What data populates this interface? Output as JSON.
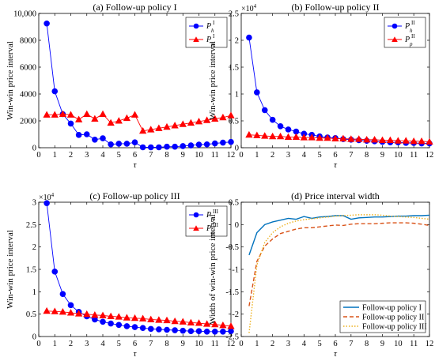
{
  "chart_data": [
    {
      "type": "line",
      "title": "(a) Follow-up policy I",
      "xlabel": "τ",
      "ylabel": "Win-win price interval",
      "xlim": [
        0,
        12
      ],
      "ylim": [
        0,
        10000
      ],
      "x_ticks": [
        "0",
        "1",
        "2",
        "3",
        "4",
        "5",
        "6",
        "7",
        "8",
        "9",
        "10",
        "11",
        "12"
      ],
      "y_ticks": [
        "0",
        "2000",
        "4000",
        "6000",
        "8000",
        "10,000"
      ],
      "y_exponent": "",
      "legend_position": "top-right",
      "grid": false,
      "series": [
        {
          "name_main": "P",
          "name_sub": "h",
          "name_sup": "I",
          "color": "#0000ff",
          "marker": "circle",
          "line": "solid",
          "x": [
            0.5,
            1,
            1.5,
            2,
            2.5,
            3,
            3.5,
            4,
            4.5,
            5,
            5.5,
            6,
            6.5,
            7,
            7.5,
            8,
            8.5,
            9,
            9.5,
            10,
            10.5,
            11,
            11.5,
            12
          ],
          "y": [
            9250,
            4200,
            2500,
            1800,
            950,
            1000,
            600,
            700,
            250,
            300,
            300,
            400,
            30,
            30,
            30,
            80,
            80,
            120,
            170,
            230,
            250,
            320,
            380,
            430
          ]
        },
        {
          "name_main": "P",
          "name_sub": "p",
          "name_sup": "I",
          "color": "#ff0000",
          "marker": "triangle",
          "line": "solid",
          "x": [
            0.5,
            1,
            1.5,
            2,
            2.5,
            3,
            3.5,
            4,
            4.5,
            5,
            5.5,
            6,
            6.5,
            7,
            7.5,
            8,
            8.5,
            9,
            9.5,
            10,
            10.5,
            11,
            11.5,
            12
          ],
          "y": [
            2450,
            2450,
            2500,
            2450,
            2100,
            2500,
            2150,
            2500,
            1850,
            2000,
            2200,
            2450,
            1250,
            1350,
            1450,
            1550,
            1650,
            1750,
            1850,
            1950,
            2050,
            2150,
            2250,
            2400
          ]
        }
      ]
    },
    {
      "type": "line",
      "title": "(b) Follow-up policy II",
      "xlabel": "τ",
      "ylabel": "Win-win price interval",
      "xlim": [
        0,
        12
      ],
      "ylim": [
        0,
        2.5
      ],
      "x_ticks": [
        "0",
        "1",
        "2",
        "3",
        "4",
        "5",
        "6",
        "7",
        "8",
        "9",
        "10",
        "11",
        "12"
      ],
      "y_ticks": [
        "0",
        "0.5",
        "1",
        "1.5",
        "2",
        "2.5"
      ],
      "y_exponent": "4",
      "legend_position": "top-right",
      "grid": false,
      "series": [
        {
          "name_main": "P",
          "name_sub": "h",
          "name_sup": "II",
          "color": "#0000ff",
          "marker": "circle",
          "line": "solid",
          "x": [
            0.5,
            1,
            1.5,
            2,
            2.5,
            3,
            3.5,
            4,
            4.5,
            5,
            5.5,
            6,
            6.5,
            7,
            7.5,
            8,
            8.5,
            9,
            9.5,
            10,
            10.5,
            11,
            11.5,
            12
          ],
          "y": [
            2.05,
            1.03,
            0.7,
            0.52,
            0.4,
            0.34,
            0.3,
            0.26,
            0.24,
            0.21,
            0.19,
            0.18,
            0.16,
            0.15,
            0.14,
            0.13,
            0.12,
            0.11,
            0.1,
            0.1,
            0.09,
            0.09,
            0.08,
            0.08
          ]
        },
        {
          "name_main": "P",
          "name_sub": "p",
          "name_sup": "II",
          "color": "#ff0000",
          "marker": "triangle",
          "line": "solid",
          "x": [
            0.5,
            1,
            1.5,
            2,
            2.5,
            3,
            3.5,
            4,
            4.5,
            5,
            5.5,
            6,
            6.5,
            7,
            7.5,
            8,
            8.5,
            9,
            9.5,
            10,
            10.5,
            11,
            11.5,
            12
          ],
          "y": [
            0.24,
            0.23,
            0.22,
            0.21,
            0.21,
            0.2,
            0.2,
            0.19,
            0.19,
            0.18,
            0.18,
            0.17,
            0.17,
            0.16,
            0.16,
            0.15,
            0.15,
            0.14,
            0.14,
            0.13,
            0.13,
            0.12,
            0.12,
            0.11
          ]
        }
      ]
    },
    {
      "type": "line",
      "title": "(c) Follow-up policy III",
      "xlabel": "τ",
      "ylabel": "Win-win price interval",
      "xlim": [
        0,
        12
      ],
      "ylim": [
        0,
        3
      ],
      "x_ticks": [
        "0",
        "1",
        "2",
        "3",
        "4",
        "5",
        "6",
        "7",
        "8",
        "9",
        "10",
        "11",
        "12"
      ],
      "y_ticks": [
        "0",
        "0.5",
        "1",
        "1.5",
        "2",
        "2.5",
        "3"
      ],
      "y_exponent": "4",
      "legend_position": "top-right",
      "grid": false,
      "series": [
        {
          "name_main": "P",
          "name_sub": "h",
          "name_sup": "III",
          "color": "#0000ff",
          "marker": "circle",
          "line": "solid",
          "x": [
            0.5,
            1,
            1.5,
            2,
            2.5,
            3,
            3.5,
            4,
            4.5,
            5,
            5.5,
            6,
            6.5,
            7,
            7.5,
            8,
            8.5,
            9,
            9.5,
            10,
            10.5,
            11,
            11.5,
            12
          ],
          "y": [
            2.98,
            1.45,
            0.95,
            0.7,
            0.55,
            0.45,
            0.38,
            0.33,
            0.29,
            0.26,
            0.23,
            0.21,
            0.19,
            0.17,
            0.16,
            0.15,
            0.14,
            0.13,
            0.12,
            0.12,
            0.11,
            0.11,
            0.11,
            0.12
          ]
        },
        {
          "name_main": "P",
          "name_sub": "p",
          "name_sup": "III",
          "color": "#ff0000",
          "marker": "triangle",
          "line": "solid",
          "x": [
            0.5,
            1,
            1.5,
            2,
            2.5,
            3,
            3.5,
            4,
            4.5,
            5,
            5.5,
            6,
            6.5,
            7,
            7.5,
            8,
            8.5,
            9,
            9.5,
            10,
            10.5,
            11,
            11.5,
            12
          ],
          "y": [
            0.57,
            0.56,
            0.55,
            0.53,
            0.51,
            0.5,
            0.48,
            0.47,
            0.45,
            0.44,
            0.42,
            0.41,
            0.4,
            0.38,
            0.37,
            0.36,
            0.34,
            0.33,
            0.31,
            0.3,
            0.28,
            0.27,
            0.25,
            0.23
          ]
        }
      ]
    },
    {
      "type": "line",
      "title": "(d) Price interval width",
      "xlabel": "τ",
      "ylabel": "Width of win-win price interval",
      "xlim": [
        0,
        12
      ],
      "ylim": [
        -2.5,
        0.5
      ],
      "x_ticks": [
        "0",
        "1",
        "2",
        "3",
        "4",
        "5",
        "6",
        "7",
        "8",
        "9",
        "10",
        "11",
        "12"
      ],
      "y_ticks": [
        "-2.5",
        "-2",
        "-1.5",
        "-1",
        "-0.5",
        "0",
        "0.5"
      ],
      "y_exponent": "",
      "legend_position": "bottom-right",
      "grid": false,
      "series": [
        {
          "name": "Follow-up policy I",
          "color": "#0072bd",
          "marker": "none",
          "line": "solid",
          "x": [
            0.5,
            1,
            1.5,
            2,
            2.5,
            3,
            3.5,
            4,
            4.5,
            5,
            5.5,
            6,
            6.5,
            7,
            7.5,
            8,
            8.5,
            9,
            9.5,
            10,
            10.5,
            11,
            11.5,
            12
          ],
          "y": [
            -0.68,
            -0.18,
            0.0,
            0.06,
            0.1,
            0.14,
            0.12,
            0.18,
            0.14,
            0.17,
            0.18,
            0.2,
            0.2,
            0.12,
            0.15,
            0.16,
            0.17,
            0.17,
            0.18,
            0.19,
            0.19,
            0.2,
            0.2,
            0.21
          ]
        },
        {
          "name": "Follow-up policy II",
          "color": "#d95319",
          "marker": "none",
          "line": "dashed",
          "x": [
            0.5,
            1,
            1.5,
            2,
            2.5,
            3,
            3.5,
            4,
            4.5,
            5,
            5.5,
            6,
            6.5,
            7,
            7.5,
            8,
            8.5,
            9,
            9.5,
            10,
            10.5,
            11,
            11.5,
            12
          ],
          "y": [
            -1.82,
            -0.82,
            -0.48,
            -0.32,
            -0.2,
            -0.15,
            -0.1,
            -0.07,
            -0.07,
            -0.05,
            -0.03,
            -0.01,
            -0.02,
            0.01,
            0.02,
            0.02,
            0.02,
            0.03,
            0.04,
            0.04,
            0.04,
            0.03,
            0.01,
            -0.02
          ]
        },
        {
          "name": "Follow-up policy III",
          "color": "#edb120",
          "marker": "none",
          "line": "dotted",
          "x": [
            0.5,
            1,
            1.5,
            2,
            2.5,
            3,
            3.5,
            4,
            4.5,
            5,
            5.5,
            6,
            6.5,
            7,
            7.5,
            8,
            8.5,
            9,
            9.5,
            10,
            10.5,
            11,
            11.5,
            12
          ],
          "y": [
            -2.42,
            -0.9,
            -0.4,
            -0.18,
            -0.05,
            0.03,
            0.08,
            0.11,
            0.13,
            0.15,
            0.17,
            0.19,
            0.2,
            0.21,
            0.22,
            0.22,
            0.22,
            0.21,
            0.19,
            0.18,
            0.17,
            0.16,
            0.14,
            0.12
          ]
        }
      ]
    }
  ]
}
